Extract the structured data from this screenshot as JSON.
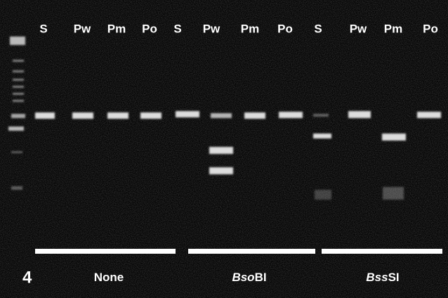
{
  "figure_number": "4",
  "lanes": [
    "S",
    "Pw",
    "Pm",
    "Po",
    "S",
    "Pw",
    "Pm",
    "Po",
    "S",
    "Pw",
    "Pm",
    "Po"
  ],
  "groups": [
    {
      "label": [
        {
          "text": "None",
          "italic": false
        }
      ]
    },
    {
      "label": [
        {
          "text": "Bso",
          "italic": true
        },
        {
          "text": "BI",
          "italic": false
        }
      ]
    },
    {
      "label": [
        {
          "text": "Bss",
          "italic": true
        },
        {
          "text": "SI",
          "italic": false
        }
      ]
    }
  ]
}
